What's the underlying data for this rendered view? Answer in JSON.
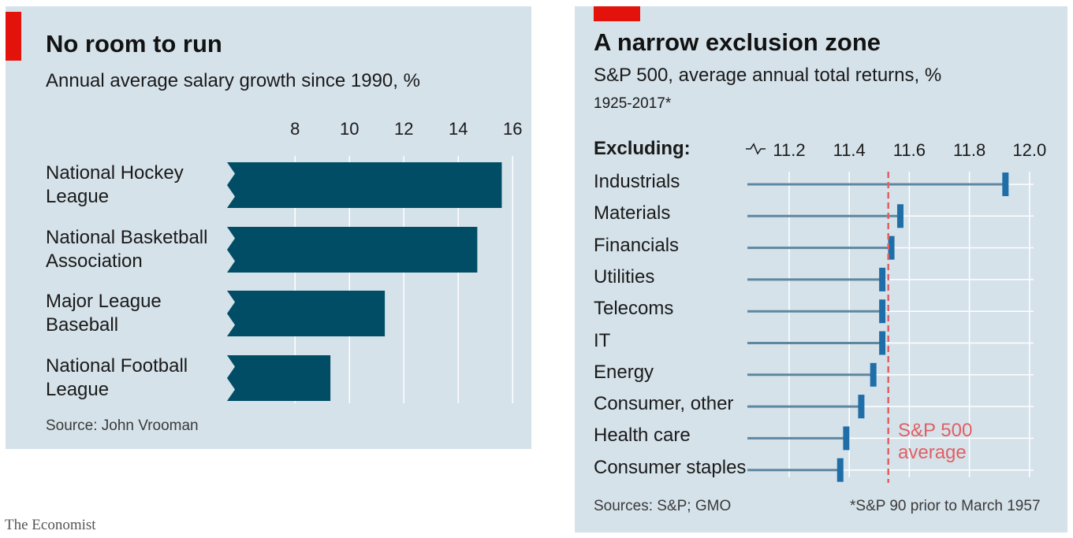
{
  "colors": {
    "panel_bg": "#d5e2ea",
    "accent_red": "#e3120b",
    "bar": "#004d65",
    "lollipop_line": "#5f87a0",
    "lollipop_marker": "#1f6ea8",
    "average_line": "#e06063",
    "grid": "#ffffff"
  },
  "left_chart": {
    "title": "No room to run",
    "subtitle": "Annual average salary growth since 1990, %",
    "source": "Source: John Vrooman"
  },
  "right_chart": {
    "title": "A narrow exclusion zone",
    "subtitle": "S&P 500, average annual total returns, %",
    "period": "1925-2017*",
    "row_header": "Excluding:",
    "average_label_line1": "S&P 500",
    "average_label_line2": "average",
    "sources": "Sources: S&P; GMO",
    "footnote": "*S&P 90 prior to March 1957"
  },
  "footer": "The Economist",
  "chart_data": [
    {
      "type": "bar",
      "orientation": "horizontal",
      "title": "No room to run",
      "subtitle": "Annual average salary growth since 1990, %",
      "categories": [
        [
          "National Hockey",
          "League"
        ],
        [
          "National Basketball",
          "Association"
        ],
        [
          "Major League",
          "Baseball"
        ],
        [
          "National Football",
          "League"
        ]
      ],
      "values": [
        15.6,
        14.7,
        11.3,
        9.3
      ],
      "xlim": [
        5.5,
        16
      ],
      "xticks": [
        8,
        10,
        12,
        14,
        16
      ],
      "axis_break": true,
      "grid": true
    },
    {
      "type": "scatter",
      "style": "lollipop",
      "title": "A narrow exclusion zone",
      "subtitle": "S&P 500, average annual total returns, %",
      "categories": [
        "Industrials",
        "Materials",
        "Financials",
        "Utilities",
        "Telecoms",
        "IT",
        "Energy",
        "Consumer, other",
        "Health care",
        "Consumer staples"
      ],
      "values": [
        11.92,
        11.57,
        11.54,
        11.51,
        11.51,
        11.51,
        11.48,
        11.44,
        11.39,
        11.37
      ],
      "reference_line": {
        "value": 11.53,
        "label": "S&P 500 average"
      },
      "xlim": [
        11.0,
        12.0
      ],
      "xticks": [
        11.2,
        11.4,
        11.6,
        11.8,
        12.0
      ],
      "xtick_labels": [
        "11.2",
        "11.4",
        "11.6",
        "11.8",
        "12.0"
      ],
      "axis_break": true,
      "grid": true
    }
  ]
}
